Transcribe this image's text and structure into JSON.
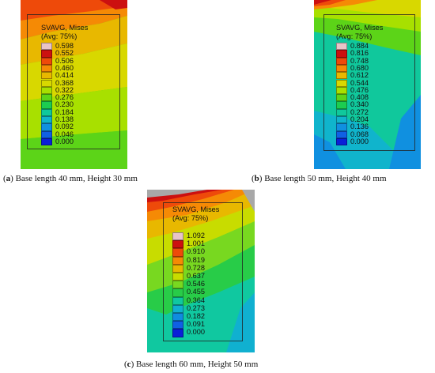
{
  "panels": [
    {
      "id": "a",
      "legend_title_1": "SVAVG, Mises",
      "legend_title_2": "(Avg: 75%)",
      "legend_values": [
        "0.598",
        "0.552",
        "0.506",
        "0.460",
        "0.414",
        "0.368",
        "0.322",
        "0.276",
        "0.230",
        "0.184",
        "0.138",
        "0.092",
        "0.046",
        "0.000"
      ],
      "caption_label": "a",
      "caption_text": " Base length 40 mm, Height 30 mm"
    },
    {
      "id": "b",
      "legend_title_1": "SVAVG, Mises",
      "legend_title_2": "(Avg: 75%)",
      "legend_values": [
        "0.884",
        "0.816",
        "0.748",
        "0.680",
        "0.612",
        "0.544",
        "0.476",
        "0.408",
        "0.340",
        "0.272",
        "0.204",
        "0.136",
        "0.068",
        "0.000"
      ],
      "caption_label": "b",
      "caption_text": " Base length 50 mm, Height 40 mm"
    },
    {
      "id": "c",
      "legend_title_1": "SVAVG, Mises",
      "legend_title_2": "(Avg: 75%)",
      "legend_values": [
        "1.092",
        "1.001",
        "0.910",
        "0.819",
        "0.728",
        "0.637",
        "0.546",
        "0.455",
        "0.364",
        "0.273",
        "0.182",
        "0.091",
        "0.000"
      ],
      "caption_label": "c",
      "caption_text": " Base length 60 mm, Height 50 mm"
    }
  ],
  "legend_colors": [
    "#e8c4c8",
    "#cc1010",
    "#ee4a0a",
    "#f58a05",
    "#e8b800",
    "#d8d800",
    "#a8e000",
    "#5cd418",
    "#1ccc50",
    "#10c89c",
    "#10b4cc",
    "#1090e0",
    "#1060e4",
    "#0a20d8"
  ],
  "legend_colors_c": [
    "#e8c4c8",
    "#cc1010",
    "#ee4a0a",
    "#f58a05",
    "#e8b800",
    "#c8dc00",
    "#78d820",
    "#28cc48",
    "#10c8a0",
    "#10b0d0",
    "#108ce0",
    "#1060e4",
    "#0a20d8"
  ]
}
